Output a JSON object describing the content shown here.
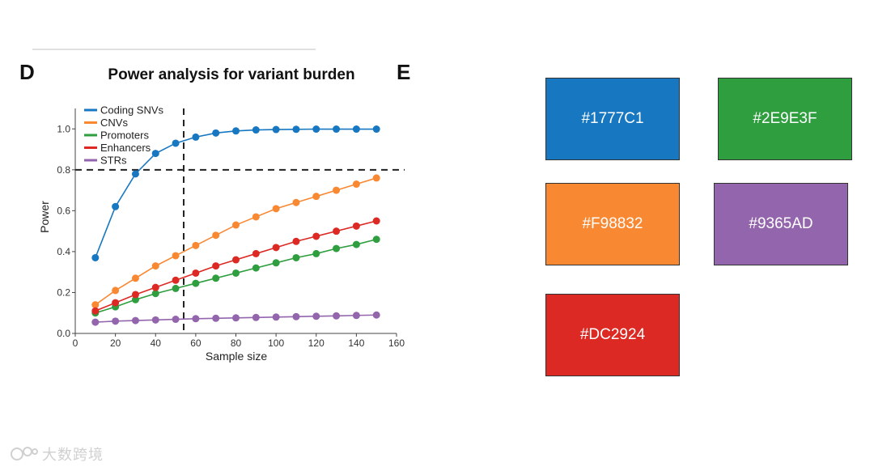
{
  "figure": {
    "panel_letter": "D",
    "next_panel_letter": "E"
  },
  "chart_data": {
    "type": "line",
    "title": "Power analysis for variant burden",
    "xlabel": "Sample size",
    "ylabel": "Power",
    "xlim": [
      0,
      160
    ],
    "ylim": [
      0,
      1.1
    ],
    "xticks": [
      0,
      20,
      40,
      60,
      80,
      100,
      120,
      140,
      160
    ],
    "yticks": [
      "0.0",
      "0.2",
      "0.4",
      "0.6",
      "0.8",
      "1.0"
    ],
    "legend_placement": "top-left",
    "reference_lines": {
      "horizontal_y": 0.8,
      "vertical_x": 54
    },
    "x": [
      10,
      20,
      30,
      40,
      50,
      60,
      70,
      80,
      90,
      100,
      110,
      120,
      130,
      140,
      150
    ],
    "series": [
      {
        "name": "Coding SNVs",
        "color": "#1777C1",
        "values": [
          0.37,
          0.62,
          0.78,
          0.88,
          0.93,
          0.96,
          0.98,
          0.99,
          0.995,
          0.997,
          0.998,
          0.999,
          0.999,
          0.999,
          0.999
        ]
      },
      {
        "name": "CNVs",
        "color": "#F98832",
        "values": [
          0.14,
          0.21,
          0.27,
          0.33,
          0.38,
          0.43,
          0.48,
          0.53,
          0.57,
          0.61,
          0.64,
          0.67,
          0.7,
          0.73,
          0.76
        ]
      },
      {
        "name": "Promoters",
        "color": "#2E9E3F",
        "values": [
          0.1,
          0.13,
          0.165,
          0.195,
          0.22,
          0.245,
          0.27,
          0.295,
          0.32,
          0.345,
          0.37,
          0.39,
          0.415,
          0.435,
          0.46
        ]
      },
      {
        "name": "Enhancers",
        "color": "#DC2924",
        "values": [
          0.11,
          0.15,
          0.19,
          0.225,
          0.26,
          0.295,
          0.33,
          0.36,
          0.39,
          0.42,
          0.45,
          0.475,
          0.5,
          0.525,
          0.55
        ]
      },
      {
        "name": "STRs",
        "color": "#9365AD",
        "values": [
          0.055,
          0.06,
          0.063,
          0.066,
          0.069,
          0.072,
          0.074,
          0.076,
          0.078,
          0.08,
          0.082,
          0.084,
          0.086,
          0.088,
          0.09
        ]
      }
    ]
  },
  "swatches": [
    {
      "hex": "#1777C1",
      "label": "#1777C1"
    },
    {
      "hex": "#2E9E3F",
      "label": "#2E9E3F"
    },
    {
      "hex": "#F98832",
      "label": "#F98832"
    },
    {
      "hex": "#9365AD",
      "label": "#9365AD"
    },
    {
      "hex": "#DC2924",
      "label": "#DC2924"
    }
  ],
  "watermark": {
    "text": "大数跨境"
  }
}
